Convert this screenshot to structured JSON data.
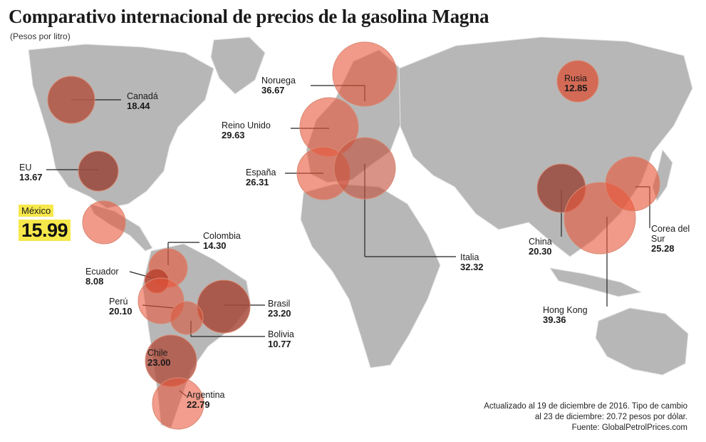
{
  "title": "Comparativo internacional de precios de la gasolina Magna",
  "subtitle": "(Pesos por litro)",
  "colors": {
    "bubble": "#e8573a",
    "bubble_dark": "#9b4a3e",
    "highlight": "#f6e84a",
    "land": "#b9b9b9"
  },
  "countries": [
    {
      "id": "canada",
      "name": "Canadá",
      "value": "18.44"
    },
    {
      "id": "eu",
      "name": "EU",
      "value": "13.67"
    },
    {
      "id": "mexico",
      "name": "México",
      "value": "15.99"
    },
    {
      "id": "colombia",
      "name": "Colombia",
      "value": "14.30"
    },
    {
      "id": "ecuador",
      "name": "Ecuador",
      "value": "8.08"
    },
    {
      "id": "peru",
      "name": "Perú",
      "value": "20.10"
    },
    {
      "id": "brasil",
      "name": "Brasil",
      "value": "23.20"
    },
    {
      "id": "bolivia",
      "name": "Bolivia",
      "value": "10.77"
    },
    {
      "id": "chile",
      "name": "Chile",
      "value": "23.00"
    },
    {
      "id": "argentina",
      "name": "Argentina",
      "value": "22.79"
    },
    {
      "id": "noruega",
      "name": "Noruega",
      "value": "36.67"
    },
    {
      "id": "reino-unido",
      "name": "Reino Unido",
      "value": "29.63"
    },
    {
      "id": "espana",
      "name": "España",
      "value": "26.31"
    },
    {
      "id": "italia",
      "name": "Italia",
      "value": "32.32"
    },
    {
      "id": "rusia",
      "name": "Rusia",
      "value": "12.85"
    },
    {
      "id": "china",
      "name": "China",
      "value": "20.30"
    },
    {
      "id": "hong-kong",
      "name": "Hong Kong",
      "value": "39.36"
    },
    {
      "id": "corea",
      "name": "Corea del Sur",
      "value": "25.28"
    }
  ],
  "note": {
    "line1": "Actualizado al 19 de diciembre de 2016. Tipo de cambio",
    "line2": "al 23 de diciembre: 20.72 pesos por dólar.",
    "line3": "Fuente: GlobalPetrolPrices.com"
  }
}
